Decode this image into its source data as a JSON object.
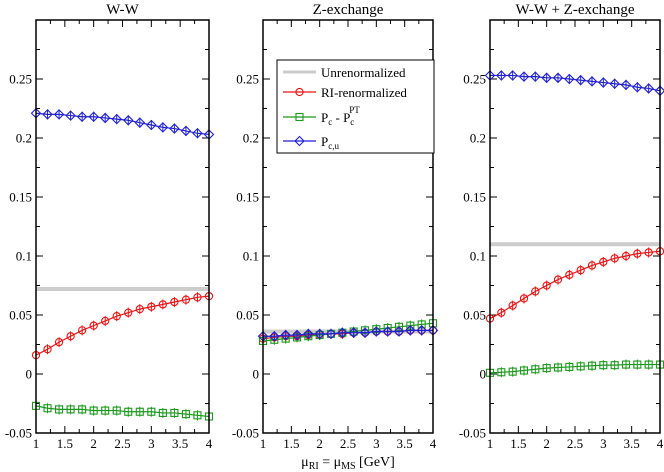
{
  "xlabel_parts": {
    "mu": "μ",
    "ri": "RI",
    "eq": " = μ",
    "ms": "MS",
    "unit": "  [GeV]"
  },
  "legend": [
    {
      "label": "Unrenormalized"
    },
    {
      "label": "RI-renormalized"
    },
    {
      "label": "Pc - Pc^PT",
      "main1": "P",
      "sub1": "c",
      "mid": " - P",
      "sub2": "c",
      "sup2": "PT"
    },
    {
      "label": "Pc,u",
      "main1": "P",
      "sub1": "c,u"
    }
  ],
  "chart_data": [
    {
      "type": "line",
      "title": "W-W",
      "xlim": [
        1,
        4
      ],
      "ylim": [
        -0.05,
        0.3
      ],
      "xticks": [
        "1",
        "1.5",
        "2",
        "2.5",
        "3",
        "3.5",
        "4"
      ],
      "yticks": [
        "-0.05",
        "0",
        "0.05",
        "0.1",
        "0.15",
        "0.2",
        "0.25"
      ],
      "x": [
        1.0,
        1.2,
        1.4,
        1.6,
        1.8,
        2.0,
        2.2,
        2.4,
        2.6,
        2.8,
        3.0,
        3.2,
        3.4,
        3.6,
        3.8,
        4.0
      ],
      "series": [
        {
          "name": "Unrenormalized",
          "color": "#cccccc",
          "marker": "none",
          "x": [
            1.0,
            4.0
          ],
          "values": [
            0.072,
            0.072
          ]
        },
        {
          "name": "RI-renormalized",
          "color": "#ee1111",
          "marker": "circle",
          "values": [
            0.016,
            0.021,
            0.027,
            0.032,
            0.037,
            0.041,
            0.045,
            0.049,
            0.052,
            0.055,
            0.057,
            0.059,
            0.061,
            0.063,
            0.065,
            0.066
          ]
        },
        {
          "name": "Pc - Pc^PT",
          "color": "#1a9a1a",
          "marker": "square",
          "values": [
            -0.027,
            -0.029,
            -0.03,
            -0.03,
            -0.03,
            -0.031,
            -0.031,
            -0.031,
            -0.032,
            -0.032,
            -0.032,
            -0.033,
            -0.033,
            -0.034,
            -0.035,
            -0.036
          ]
        },
        {
          "name": "Pc,u",
          "color": "#1f1fd6",
          "marker": "diamond",
          "values": [
            0.221,
            0.22,
            0.22,
            0.219,
            0.218,
            0.218,
            0.217,
            0.216,
            0.215,
            0.213,
            0.211,
            0.209,
            0.208,
            0.206,
            0.204,
            0.203
          ]
        }
      ]
    },
    {
      "type": "line",
      "title": "Z-exchange",
      "xlim": [
        1,
        4
      ],
      "ylim": [
        -0.05,
        0.3
      ],
      "xticks": [
        "1",
        "1.5",
        "2",
        "2.5",
        "3",
        "3.5",
        "4"
      ],
      "yticks": [
        "-0.05",
        "0",
        "0.05",
        "0.1",
        "0.15",
        "0.2",
        "0.25"
      ],
      "x": [
        1.0,
        1.2,
        1.4,
        1.6,
        1.8,
        2.0,
        2.2,
        2.4,
        2.6,
        2.8,
        3.0,
        3.2,
        3.4,
        3.6,
        3.8,
        4.0
      ],
      "series": [
        {
          "name": "Unrenormalized",
          "color": "#cccccc",
          "marker": "none",
          "x": [
            1.0,
            4.0
          ],
          "values": [
            0.036,
            0.036
          ]
        },
        {
          "name": "RI-renormalized",
          "color": "#ee1111",
          "marker": "circle",
          "values": [
            0.03,
            0.031,
            0.032,
            0.032,
            0.033,
            0.033,
            0.034,
            0.034,
            0.035,
            0.035,
            0.036,
            0.036,
            0.036,
            0.037,
            0.037,
            0.037
          ]
        },
        {
          "name": "Pc - Pc^PT",
          "color": "#1a9a1a",
          "marker": "square",
          "values": [
            0.028,
            0.029,
            0.03,
            0.031,
            0.032,
            0.033,
            0.034,
            0.035,
            0.036,
            0.037,
            0.038,
            0.039,
            0.04,
            0.041,
            0.042,
            0.043
          ]
        },
        {
          "name": "Pc,u",
          "color": "#1f1fd6",
          "marker": "diamond",
          "values": [
            0.032,
            0.032,
            0.033,
            0.033,
            0.034,
            0.034,
            0.034,
            0.035,
            0.035,
            0.035,
            0.036,
            0.036,
            0.036,
            0.037,
            0.037,
            0.037
          ]
        }
      ]
    },
    {
      "type": "line",
      "title": "W-W + Z-exchange",
      "xlim": [
        1,
        4
      ],
      "ylim": [
        -0.05,
        0.3
      ],
      "xticks": [
        "1",
        "1.5",
        "2",
        "2.5",
        "3",
        "3.5",
        "4"
      ],
      "yticks": [
        "-0.05",
        "0",
        "0.05",
        "0.1",
        "0.15",
        "0.2",
        "0.25"
      ],
      "x": [
        1.0,
        1.2,
        1.4,
        1.6,
        1.8,
        2.0,
        2.2,
        2.4,
        2.6,
        2.8,
        3.0,
        3.2,
        3.4,
        3.6,
        3.8,
        4.0
      ],
      "series": [
        {
          "name": "Unrenormalized",
          "color": "#cccccc",
          "marker": "none",
          "x": [
            1.0,
            4.0
          ],
          "values": [
            0.11,
            0.11
          ]
        },
        {
          "name": "RI-renormalized",
          "color": "#ee1111",
          "marker": "circle",
          "values": [
            0.047,
            0.052,
            0.058,
            0.064,
            0.07,
            0.075,
            0.08,
            0.084,
            0.088,
            0.092,
            0.095,
            0.098,
            0.1,
            0.102,
            0.103,
            0.104
          ]
        },
        {
          "name": "Pc - Pc^PT",
          "color": "#1a9a1a",
          "marker": "square",
          "values": [
            0.001,
            0.0015,
            0.002,
            0.003,
            0.004,
            0.005,
            0.0055,
            0.006,
            0.0065,
            0.007,
            0.0075,
            0.0075,
            0.008,
            0.008,
            0.008,
            0.008
          ]
        },
        {
          "name": "Pc,u",
          "color": "#1f1fd6",
          "marker": "diamond",
          "values": [
            0.253,
            0.253,
            0.253,
            0.252,
            0.252,
            0.251,
            0.251,
            0.25,
            0.249,
            0.248,
            0.247,
            0.246,
            0.245,
            0.243,
            0.242,
            0.24
          ]
        }
      ]
    }
  ]
}
